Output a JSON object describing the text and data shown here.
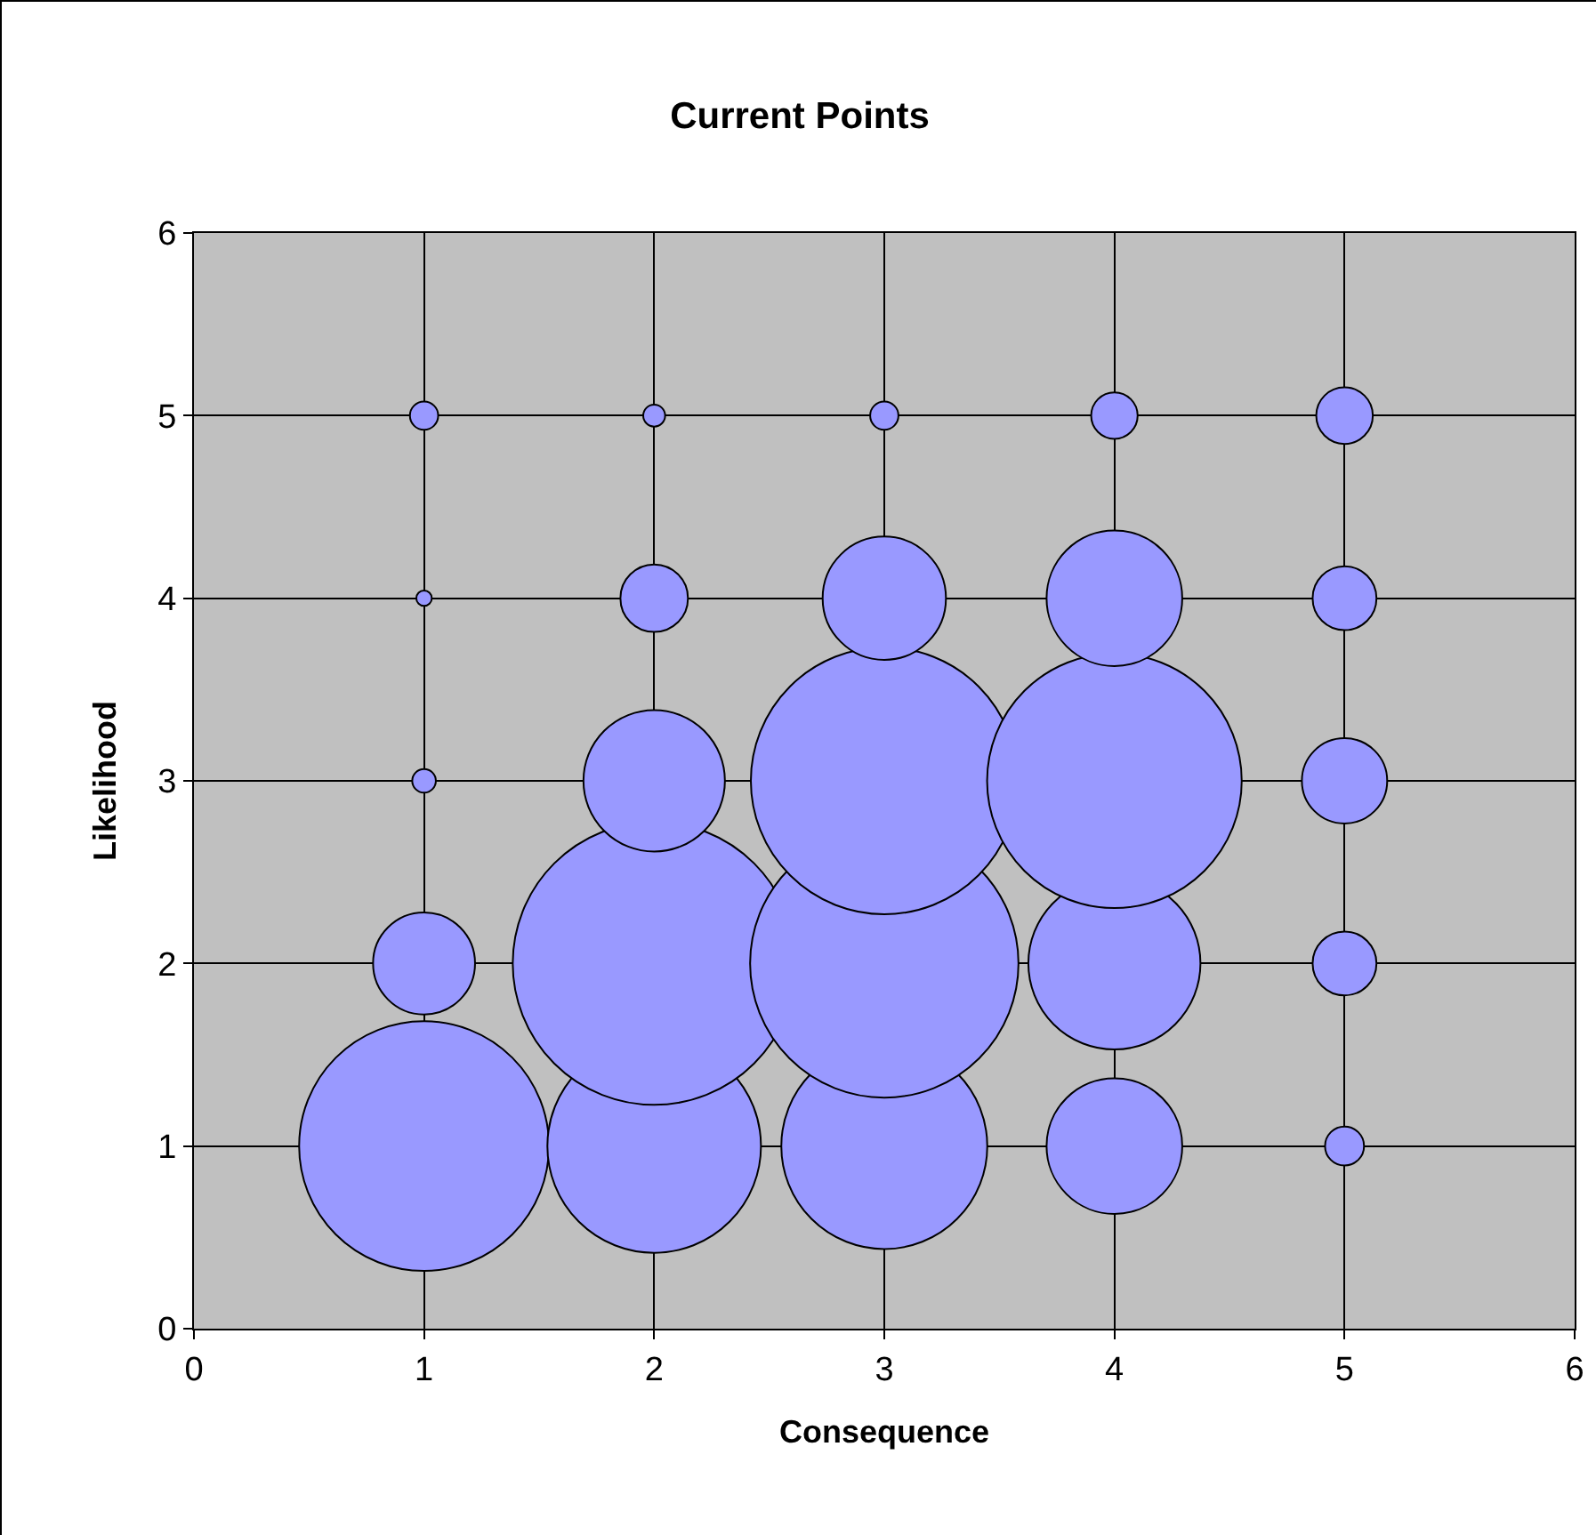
{
  "chart_data": {
    "type": "bubble",
    "title": "Current Points",
    "xlabel": "Consequence",
    "ylabel": "Likelihood",
    "x": [
      1,
      1,
      1,
      1,
      1,
      2,
      2,
      2,
      2,
      2,
      3,
      3,
      3,
      3,
      3,
      4,
      4,
      4,
      4,
      4,
      5,
      5,
      5,
      5,
      5
    ],
    "values": [
      1,
      2,
      3,
      4,
      5,
      1,
      2,
      3,
      4,
      5,
      1,
      2,
      3,
      4,
      5,
      1,
      2,
      3,
      4,
      5,
      1,
      2,
      3,
      4,
      5
    ],
    "sizes": [
      0.78,
      0.13,
      0.007,
      0.003,
      0.01,
      0.57,
      1,
      0.25,
      0.057,
      0.006,
      0.53,
      0.9,
      0.89,
      0.19,
      0.01,
      0.23,
      0.37,
      0.81,
      0.23,
      0.027,
      0.019,
      0.051,
      0.091,
      0.051,
      0.04
    ],
    "color": "#9999ff",
    "xlim": [
      0,
      6
    ],
    "xticks": [
      0,
      1,
      2,
      3,
      4,
      5,
      6
    ],
    "ylim": [
      0,
      6
    ],
    "yticks": [
      0,
      1,
      2,
      3,
      4,
      5,
      6
    ],
    "grid": true
  }
}
